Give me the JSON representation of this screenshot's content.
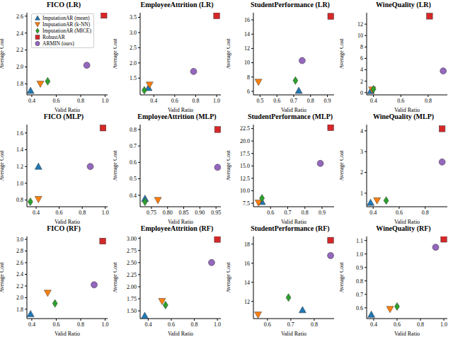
{
  "chart_data": [
    {
      "type": "scatter",
      "title": "FICO (LR)",
      "x_label": "Valid Ratio",
      "y_label": "Average Cost",
      "legend": "upper left",
      "xlim": [
        0.36,
        1.02
      ],
      "ylim": [
        1.67,
        2.64
      ],
      "xticks": [
        0.4,
        0.6,
        0.8,
        {
          "value": 1,
          "label": "1.0"
        }
      ],
      "yticks": [
        1.8,
        {
          "value": 2,
          "label": "2.0"
        },
        2.2,
        2.4,
        2.6
      ],
      "series": [
        {
          "name": "ImputationAR (mean)",
          "color": "#1f77b4",
          "marker": "triangle_up",
          "x": [
            0.39
          ],
          "y": [
            1.72
          ]
        },
        {
          "name": "ImputationAR (k-NN)",
          "color": "#ff7f0e",
          "marker": "triangle_down",
          "x": [
            0.47
          ],
          "y": [
            1.8
          ]
        },
        {
          "name": "ImputationAR (MICE)",
          "color": "#2ca02c",
          "marker": "diamond",
          "x": [
            0.53
          ],
          "y": [
            1.83
          ]
        },
        {
          "name": "RobustAR",
          "color": "#d62728",
          "marker": "square",
          "x": [
            0.99
          ],
          "y": [
            2.61
          ]
        },
        {
          "name": "ARMIN (ours)",
          "color": "#9467bd",
          "marker": "circle",
          "x": [
            0.85
          ],
          "y": [
            2.02
          ]
        }
      ]
    },
    {
      "type": "scatter",
      "title": "EmployeeAttrition (LR)",
      "x_label": "Valid Ratio",
      "y_label": "Average Cost",
      "xlim": [
        0.27,
        1.04
      ],
      "ylim": [
        0.95,
        3.65
      ],
      "xticks": [
        0.4,
        0.6,
        0.8,
        {
          "value": 1,
          "label": "1.0"
        }
      ],
      "yticks": [
        1.5,
        {
          "value": 2,
          "label": "2.0"
        },
        2.5,
        {
          "value": 3,
          "label": "3.0"
        },
        3.5
      ],
      "series": [
        {
          "name": "ImputationAR (mean)",
          "color": "#1f77b4",
          "marker": "triangle_up",
          "x": [
            0.35
          ],
          "y": [
            1.18
          ]
        },
        {
          "name": "ImputationAR (k-NN)",
          "color": "#ff7f0e",
          "marker": "triangle_down",
          "x": [
            0.36
          ],
          "y": [
            1.28
          ]
        },
        {
          "name": "ImputationAR (MICE)",
          "color": "#2ca02c",
          "marker": "diamond",
          "x": [
            0.31
          ],
          "y": [
            1.1
          ]
        },
        {
          "name": "RobustAR",
          "color": "#d62728",
          "marker": "square",
          "x": [
            1.0
          ],
          "y": [
            3.55
          ]
        },
        {
          "name": "ARMIN (ours)",
          "color": "#9467bd",
          "marker": "circle",
          "x": [
            0.78
          ],
          "y": [
            1.72
          ]
        }
      ]
    },
    {
      "type": "scatter",
      "title": "StudentPerformance (LR)",
      "x_label": "Valid Ratio",
      "y_label": "Average Cost",
      "xlim": [
        0.46,
        0.94
      ],
      "ylim": [
        5.5,
        17
      ],
      "xticks": [
        0.5,
        0.6,
        0.7,
        0.8,
        0.9
      ],
      "yticks": [
        6,
        8,
        10,
        12,
        14,
        16
      ],
      "series": [
        {
          "name": "ImputationAR (mean)",
          "color": "#1f77b4",
          "marker": "triangle_up",
          "x": [
            0.73
          ],
          "y": [
            6.1
          ]
        },
        {
          "name": "ImputationAR (k-NN)",
          "color": "#ff7f0e",
          "marker": "triangle_down",
          "x": [
            0.49
          ],
          "y": [
            7.3
          ]
        },
        {
          "name": "ImputationAR (MICE)",
          "color": "#2ca02c",
          "marker": "diamond",
          "x": [
            0.71
          ],
          "y": [
            7.5
          ]
        },
        {
          "name": "RobustAR",
          "color": "#d62728",
          "marker": "square",
          "x": [
            0.92
          ],
          "y": [
            16.5
          ]
        },
        {
          "name": "ARMIN (ours)",
          "color": "#9467bd",
          "marker": "circle",
          "x": [
            0.75
          ],
          "y": [
            10.3
          ]
        }
      ]
    },
    {
      "type": "scatter",
      "title": "WineQuality (LR)",
      "x_label": "Valid Ratio",
      "y_label": "Average Cost",
      "xlim": [
        0.35,
        0.94
      ],
      "ylim": [
        -0.4,
        14
      ],
      "xticks": [
        0.4,
        0.6,
        0.8
      ],
      "yticks": [
        0,
        2,
        4,
        6,
        8,
        10,
        12
      ],
      "series": [
        {
          "name": "ImputationAR (mean)",
          "color": "#1f77b4",
          "marker": "triangle_up",
          "x": [
            0.38
          ],
          "y": [
            0.3
          ]
        },
        {
          "name": "ImputationAR (k-NN)",
          "color": "#ff7f0e",
          "marker": "triangle_down",
          "x": [
            0.39
          ],
          "y": [
            0.5
          ]
        },
        {
          "name": "ImputationAR (MICE)",
          "color": "#2ca02c",
          "marker": "diamond",
          "x": [
            0.4
          ],
          "y": [
            0.6
          ]
        },
        {
          "name": "RobustAR",
          "color": "#d62728",
          "marker": "square",
          "x": [
            0.81
          ],
          "y": [
            13.4
          ]
        },
        {
          "name": "ARMIN (ours)",
          "color": "#9467bd",
          "marker": "circle",
          "x": [
            0.91
          ],
          "y": [
            3.8
          ]
        }
      ]
    },
    {
      "type": "scatter",
      "title": "FICO (MLP)",
      "x_label": "Valid Ratio",
      "y_label": "Average Cost",
      "xlim": [
        0.32,
        1.02
      ],
      "ylim": [
        0.72,
        1.7
      ],
      "xticks": [
        0.4,
        0.6,
        0.8,
        {
          "value": 1,
          "label": "1.0"
        }
      ],
      "yticks": [
        0.8,
        {
          "value": 1,
          "label": "1.0"
        },
        1.2,
        1.4,
        1.6
      ],
      "series": [
        {
          "name": "ImputationAR (mean)",
          "color": "#1f77b4",
          "marker": "triangle_up",
          "x": [
            0.42
          ],
          "y": [
            1.2
          ]
        },
        {
          "name": "ImputationAR (k-NN)",
          "color": "#ff7f0e",
          "marker": "triangle_down",
          "x": [
            0.42
          ],
          "y": [
            0.81
          ]
        },
        {
          "name": "ImputationAR (MICE)",
          "color": "#2ca02c",
          "marker": "diamond",
          "x": [
            0.35
          ],
          "y": [
            0.78
          ]
        },
        {
          "name": "RobustAR",
          "color": "#d62728",
          "marker": "square",
          "x": [
            0.98
          ],
          "y": [
            1.66
          ]
        },
        {
          "name": "ARMIN (ours)",
          "color": "#9467bd",
          "marker": "circle",
          "x": [
            0.87
          ],
          "y": [
            1.2
          ]
        }
      ]
    },
    {
      "type": "scatter",
      "title": "EmployeeAttrition (MLP)",
      "x_label": "Valid Ratio",
      "y_label": "Average Cost",
      "xlim": [
        0.715,
        0.965
      ],
      "ylim": [
        0.33,
        0.83
      ],
      "xticks": [
        0.75,
        {
          "value": 0.8,
          "label": "0.80"
        },
        0.85,
        {
          "value": 0.9,
          "label": "0.90"
        },
        0.95
      ],
      "yticks": [
        0.4,
        0.5,
        0.6,
        0.7,
        0.8
      ],
      "series": [
        {
          "name": "ImputationAR (mean)",
          "color": "#1f77b4",
          "marker": "triangle_up",
          "x": [
            0.73
          ],
          "y": [
            0.38
          ]
        },
        {
          "name": "ImputationAR (k-NN)",
          "color": "#ff7f0e",
          "marker": "triangle_down",
          "x": [
            0.77
          ],
          "y": [
            0.37
          ]
        },
        {
          "name": "ImputationAR (MICE)",
          "color": "#2ca02c",
          "marker": "diamond",
          "x": [
            0.73
          ],
          "y": [
            0.36
          ]
        },
        {
          "name": "RobustAR",
          "color": "#d62728",
          "marker": "square",
          "x": [
            0.955
          ],
          "y": [
            0.8
          ]
        },
        {
          "name": "ARMIN (ours)",
          "color": "#9467bd",
          "marker": "circle",
          "x": [
            0.955
          ],
          "y": [
            0.57
          ]
        }
      ]
    },
    {
      "type": "scatter",
      "title": "StudentPerformance (MLP)",
      "x_label": "Valid Ratio",
      "y_label": "Average Cost",
      "xlim": [
        0.5,
        0.97
      ],
      "ylim": [
        6.8,
        23.3
      ],
      "xticks": [
        0.6,
        0.7,
        0.8,
        0.9
      ],
      "yticks": [
        7.5,
        {
          "value": 10,
          "label": "10.0"
        },
        12.5,
        {
          "value": 15,
          "label": "15.0"
        },
        17.5,
        {
          "value": 20,
          "label": "20.0"
        },
        22.5
      ],
      "series": [
        {
          "name": "ImputationAR (mean)",
          "color": "#1f77b4",
          "marker": "triangle_up",
          "x": [
            0.55
          ],
          "y": [
            7.8
          ]
        },
        {
          "name": "ImputationAR (k-NN)",
          "color": "#ff7f0e",
          "marker": "triangle_down",
          "x": [
            0.53
          ],
          "y": [
            7.6
          ]
        },
        {
          "name": "ImputationAR (MICE)",
          "color": "#2ca02c",
          "marker": "diamond",
          "x": [
            0.55
          ],
          "y": [
            8.5
          ]
        },
        {
          "name": "RobustAR",
          "color": "#d62728",
          "marker": "square",
          "x": [
            0.95
          ],
          "y": [
            22.7
          ]
        },
        {
          "name": "ARMIN (ours)",
          "color": "#9467bd",
          "marker": "circle",
          "x": [
            0.89
          ],
          "y": [
            15.5
          ]
        }
      ]
    },
    {
      "type": "scatter",
      "title": "WineQuality (MLP)",
      "x_label": "Valid Ratio",
      "y_label": "Average Cost",
      "xlim": [
        0.35,
        0.97
      ],
      "ylim": [
        0.35,
        4.3
      ],
      "xticks": [
        0.4,
        0.6,
        0.8
      ],
      "yticks": [
        1,
        2,
        3,
        4
      ],
      "series": [
        {
          "name": "ImputationAR (mean)",
          "color": "#1f77b4",
          "marker": "triangle_up",
          "x": [
            0.38
          ],
          "y": [
            0.55
          ]
        },
        {
          "name": "ImputationAR (k-NN)",
          "color": "#ff7f0e",
          "marker": "triangle_down",
          "x": [
            0.43
          ],
          "y": [
            0.65
          ]
        },
        {
          "name": "ImputationAR (MICE)",
          "color": "#2ca02c",
          "marker": "diamond",
          "x": [
            0.5
          ],
          "y": [
            0.65
          ]
        },
        {
          "name": "RobustAR",
          "color": "#d62728",
          "marker": "square",
          "x": [
            0.93
          ],
          "y": [
            4.1
          ]
        },
        {
          "name": "ARMIN (ours)",
          "color": "#9467bd",
          "marker": "circle",
          "x": [
            0.93
          ],
          "y": [
            2.5
          ]
        }
      ]
    },
    {
      "type": "scatter",
      "title": "FICO (RF)",
      "x_label": "Valid Ratio",
      "y_label": "Average Cost",
      "xlim": [
        0.36,
        1.02
      ],
      "ylim": [
        1.64,
        3.05
      ],
      "xticks": [
        0.4,
        0.6,
        0.8,
        {
          "value": 1,
          "label": "1.0"
        }
      ],
      "yticks": [
        1.8,
        {
          "value": 2,
          "label": "2.0"
        },
        2.2,
        2.4,
        2.6,
        2.8,
        {
          "value": 3,
          "label": "3.0"
        }
      ],
      "series": [
        {
          "name": "ImputationAR (mean)",
          "color": "#1f77b4",
          "marker": "triangle_up",
          "x": [
            0.39
          ],
          "y": [
            1.72
          ]
        },
        {
          "name": "ImputationAR (k-NN)",
          "color": "#ff7f0e",
          "marker": "triangle_down",
          "x": [
            0.53
          ],
          "y": [
            2.08
          ]
        },
        {
          "name": "ImputationAR (MICE)",
          "color": "#2ca02c",
          "marker": "diamond",
          "x": [
            0.59
          ],
          "y": [
            1.9
          ]
        },
        {
          "name": "RobustAR",
          "color": "#d62728",
          "marker": "square",
          "x": [
            0.98
          ],
          "y": [
            2.97
          ]
        },
        {
          "name": "ARMIN (ours)",
          "color": "#9467bd",
          "marker": "circle",
          "x": [
            0.91
          ],
          "y": [
            2.22
          ]
        }
      ]
    },
    {
      "type": "scatter",
      "title": "EmployeeAttrition (RF)",
      "x_label": "Valid Ratio",
      "y_label": "Average Cost",
      "xlim": [
        0.33,
        1.03
      ],
      "ylim": [
        1.34,
        3.04
      ],
      "xticks": [
        0.4,
        0.6,
        0.8,
        {
          "value": 1,
          "label": "1.0"
        }
      ],
      "yticks": [
        {
          "value": 1.5,
          "label": "1.50"
        },
        1.75,
        {
          "value": 2,
          "label": "2.00"
        },
        2.25,
        {
          "value": 2.5,
          "label": "2.50"
        },
        2.75,
        {
          "value": 3,
          "label": "3.00"
        }
      ],
      "series": [
        {
          "name": "ImputationAR (mean)",
          "color": "#1f77b4",
          "marker": "triangle_up",
          "x": [
            0.37
          ],
          "y": [
            1.4
          ]
        },
        {
          "name": "ImputationAR (k-NN)",
          "color": "#ff7f0e",
          "marker": "triangle_down",
          "x": [
            0.52
          ],
          "y": [
            1.7
          ]
        },
        {
          "name": "ImputationAR (MICE)",
          "color": "#2ca02c",
          "marker": "diamond",
          "x": [
            0.55
          ],
          "y": [
            1.62
          ]
        },
        {
          "name": "RobustAR",
          "color": "#d62728",
          "marker": "square",
          "x": [
            1.0
          ],
          "y": [
            2.98
          ]
        },
        {
          "name": "ARMIN (ours)",
          "color": "#9467bd",
          "marker": "circle",
          "x": [
            0.95
          ],
          "y": [
            2.5
          ]
        }
      ]
    },
    {
      "type": "scatter",
      "title": "StudentPerformance (RF)",
      "x_label": "Valid Ratio",
      "y_label": "Average Cost",
      "xlim": [
        0.54,
        0.885
      ],
      "ylim": [
        10.2,
        18.8
      ],
      "xticks": [
        0.6,
        0.7,
        0.8
      ],
      "yticks": [
        12,
        14,
        16,
        18
      ],
      "series": [
        {
          "name": "ImputationAR (mean)",
          "color": "#1f77b4",
          "marker": "triangle_up",
          "x": [
            0.75
          ],
          "y": [
            11.1
          ]
        },
        {
          "name": "ImputationAR (k-NN)",
          "color": "#ff7f0e",
          "marker": "triangle_down",
          "x": [
            0.56
          ],
          "y": [
            10.6
          ]
        },
        {
          "name": "ImputationAR (MICE)",
          "color": "#2ca02c",
          "marker": "diamond",
          "x": [
            0.69
          ],
          "y": [
            12.4
          ]
        },
        {
          "name": "RobustAR",
          "color": "#d62728",
          "marker": "square",
          "x": [
            0.87
          ],
          "y": [
            18.4
          ]
        },
        {
          "name": "ARMIN (ours)",
          "color": "#9467bd",
          "marker": "circle",
          "x": [
            0.87
          ],
          "y": [
            16.8
          ]
        }
      ]
    },
    {
      "type": "scatter",
      "title": "WineQuality (RF)",
      "x_label": "Valid Ratio",
      "y_label": "Average Cost",
      "xlim": [
        0.34,
        1.03
      ],
      "ylim": [
        0.52,
        1.13
      ],
      "xticks": [
        0.4,
        0.6,
        0.8,
        {
          "value": 1,
          "label": "1.0"
        }
      ],
      "yticks": [
        0.6,
        0.7,
        0.8,
        0.9,
        {
          "value": 1,
          "label": "1.0"
        },
        1.1
      ],
      "series": [
        {
          "name": "ImputationAR (mean)",
          "color": "#1f77b4",
          "marker": "triangle_up",
          "x": [
            0.38
          ],
          "y": [
            0.55
          ]
        },
        {
          "name": "ImputationAR (k-NN)",
          "color": "#ff7f0e",
          "marker": "triangle_down",
          "x": [
            0.54
          ],
          "y": [
            0.59
          ]
        },
        {
          "name": "ImputationAR (MICE)",
          "color": "#2ca02c",
          "marker": "diamond",
          "x": [
            0.6
          ],
          "y": [
            0.61
          ]
        },
        {
          "name": "RobustAR",
          "color": "#d62728",
          "marker": "square",
          "x": [
            1.0
          ],
          "y": [
            1.11
          ]
        },
        {
          "name": "ARMIN (ours)",
          "color": "#9467bd",
          "marker": "circle",
          "x": [
            0.93
          ],
          "y": [
            1.05
          ]
        }
      ]
    }
  ]
}
